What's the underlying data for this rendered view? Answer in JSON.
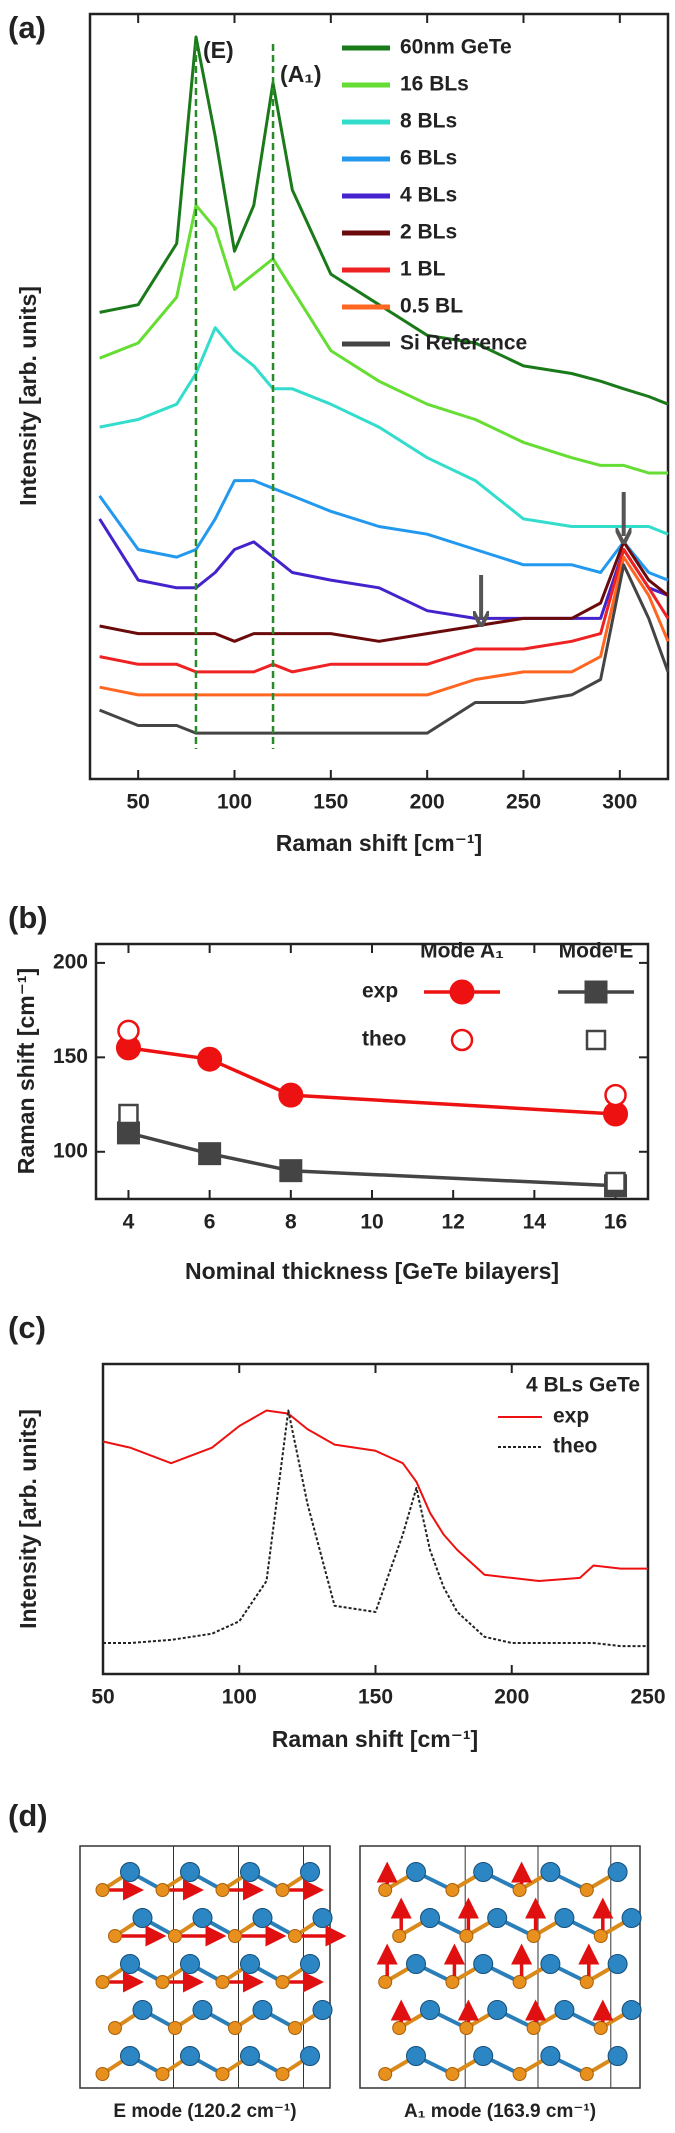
{
  "chart_data": [
    {
      "type": "line",
      "panel_label": "(a)",
      "x_label": "Raman shift [cm⁻¹]",
      "y_label": "Intensity [arb. units]",
      "x": [
        30,
        50,
        70,
        80,
        90,
        100,
        110,
        120,
        130,
        150,
        175,
        200,
        225,
        250,
        275,
        290,
        302,
        315,
        325
      ],
      "xlim": [
        25,
        325
      ],
      "xticks": [
        50,
        100,
        150,
        200,
        250,
        300
      ],
      "ylim": [
        0,
        100
      ],
      "reference_lines": [
        80,
        120
      ],
      "reference_labels": [
        "(E)",
        "(A₁)"
      ],
      "reference_color": "#2a8a2a",
      "arrow_x": [
        228,
        302
      ],
      "series": [
        {
          "name": "60nm GeTe",
          "color": "#1a7a1a",
          "values": [
            61,
            62,
            70,
            97,
            84,
            69,
            75,
            91,
            77,
            66,
            62,
            58,
            57,
            54,
            53,
            52,
            51,
            50,
            49
          ]
        },
        {
          "name": "16 BLs",
          "color": "#66dd33",
          "values": [
            55,
            57,
            63,
            75,
            72,
            64,
            66,
            68,
            64,
            56,
            52,
            49,
            47,
            44,
            42,
            41,
            41,
            40,
            40
          ]
        },
        {
          "name": "8 BLs",
          "color": "#33ddcc",
          "values": [
            46,
            47,
            49,
            53,
            59,
            56,
            54,
            51,
            51,
            49,
            46,
            42,
            39,
            34,
            33,
            33,
            33,
            33,
            32
          ]
        },
        {
          "name": "6 BLs",
          "color": "#2299ee",
          "values": [
            37,
            30,
            29,
            30,
            34,
            39,
            39,
            38,
            37,
            35,
            33,
            32,
            30,
            28,
            28,
            27,
            31,
            27,
            26
          ]
        },
        {
          "name": "4 BLs",
          "color": "#4422cc",
          "values": [
            34,
            26,
            25,
            25,
            27,
            30,
            31,
            29,
            27,
            26,
            25,
            22,
            21,
            21,
            21,
            21,
            30,
            25,
            24
          ]
        },
        {
          "name": "2 BLs",
          "color": "#6b0a0a",
          "values": [
            20,
            19,
            19,
            19,
            19,
            18,
            19,
            19,
            19,
            19,
            18,
            19,
            20,
            21,
            21,
            23,
            31,
            26,
            24
          ]
        },
        {
          "name": "1 BL",
          "color": "#ee2222",
          "values": [
            16,
            15,
            15,
            14,
            14,
            14,
            14,
            15,
            14,
            15,
            15,
            15,
            17,
            17,
            18,
            19,
            30,
            25,
            21
          ]
        },
        {
          "name": "0.5 BL",
          "color": "#ff6622",
          "values": [
            12,
            11,
            11,
            11,
            11,
            11,
            11,
            11,
            11,
            11,
            11,
            11,
            13,
            14,
            14,
            16,
            29,
            24,
            18
          ]
        },
        {
          "name": "Si Reference",
          "color": "#444444",
          "values": [
            9,
            7,
            7,
            6,
            6,
            6,
            6,
            6,
            6,
            6,
            6,
            6,
            10,
            10,
            11,
            13,
            28,
            21,
            14
          ]
        }
      ]
    },
    {
      "type": "scatter",
      "panel_label": "(b)",
      "x_label": "Nominal thickness [GeTe bilayers]",
      "y_label": "Raman shift [cm⁻¹]",
      "x": [
        4,
        6,
        8,
        16
      ],
      "xlim": [
        3.2,
        16.8
      ],
      "xticks": [
        4,
        6,
        8,
        10,
        12,
        14,
        16
      ],
      "ylim": [
        75,
        210
      ],
      "yticks": [
        100,
        150,
        200
      ],
      "legend_rows": [
        "exp",
        "theo"
      ],
      "series": [
        {
          "name": "Mode A₁",
          "color": "#ee1111",
          "marker": "circle",
          "exp": [
            155,
            149,
            130,
            120
          ],
          "theo": [
            164,
            null,
            null,
            130
          ]
        },
        {
          "name": "Mode E",
          "color": "#444444",
          "marker": "square",
          "exp": [
            110,
            99,
            90,
            82
          ],
          "theo": [
            120,
            null,
            null,
            84
          ]
        }
      ]
    },
    {
      "type": "line",
      "panel_label": "(c)",
      "x_label": "Raman shift [cm⁻¹]",
      "y_label": "Intensity [arb. units]",
      "x": [
        50,
        60,
        75,
        90,
        100,
        110,
        118,
        125,
        135,
        150,
        160,
        165,
        170,
        175,
        180,
        190,
        200,
        210,
        225,
        230,
        240,
        250
      ],
      "xlim": [
        50,
        250
      ],
      "xticks": [
        50,
        100,
        150,
        200,
        250
      ],
      "ylim": [
        0,
        100
      ],
      "legend_title": "4 BLs GeTe",
      "series": [
        {
          "name": "exp",
          "color": "#ee1111",
          "values": [
            75,
            73,
            68,
            73,
            80,
            85,
            84,
            79,
            74,
            72,
            68,
            62,
            52,
            45,
            40,
            32,
            31,
            30,
            31,
            35,
            34,
            34
          ]
        },
        {
          "name": "theo",
          "color": "#222222",
          "dash": "3 2",
          "values": [
            10,
            10,
            11,
            13,
            17,
            30,
            85,
            55,
            22,
            20,
            45,
            60,
            40,
            28,
            20,
            12,
            10,
            10,
            10,
            10,
            9,
            9
          ]
        }
      ]
    }
  ],
  "structure_panel": {
    "panel_label": "(d)",
    "captions": [
      "E mode (120.2 cm⁻¹)",
      "A₁ mode (163.9 cm⁻¹)"
    ]
  }
}
